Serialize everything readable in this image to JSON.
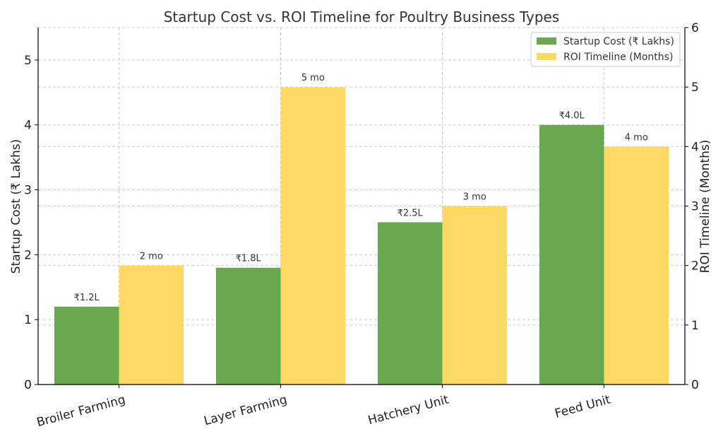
{
  "chart_data": {
    "type": "bar",
    "title": "Startup Cost vs. ROI Timeline for Poultry Business Types",
    "categories": [
      "Broiler Farming",
      "Layer Farming",
      "Hatchery Unit",
      "Feed Unit"
    ],
    "series": [
      {
        "name": "Startup Cost (₹ Lakhs)",
        "axis": "left",
        "color": "#6aa84f",
        "values": [
          1.2,
          1.8,
          2.5,
          4.0
        ],
        "labels": [
          "₹1.2L",
          "₹1.8L",
          "₹2.5L",
          "₹4.0L"
        ]
      },
      {
        "name": "ROI Timeline (Months)",
        "axis": "right",
        "color": "#ffd966",
        "values": [
          2,
          5,
          3,
          4
        ],
        "labels": [
          "2 mo",
          "5 mo",
          "3 mo",
          "4 mo"
        ]
      }
    ],
    "ylabel_left": "Startup Cost (₹ Lakhs)",
    "ylabel_right": "ROI Timeline (Months)",
    "ylim_left": [
      0,
      5.5
    ],
    "ylim_right": [
      0,
      6
    ],
    "yticks_left": [
      0,
      1,
      2,
      3,
      4,
      5
    ],
    "yticks_right": [
      0,
      1,
      2,
      3,
      4,
      5,
      6
    ],
    "grid": true,
    "legend_position": "top-right"
  }
}
